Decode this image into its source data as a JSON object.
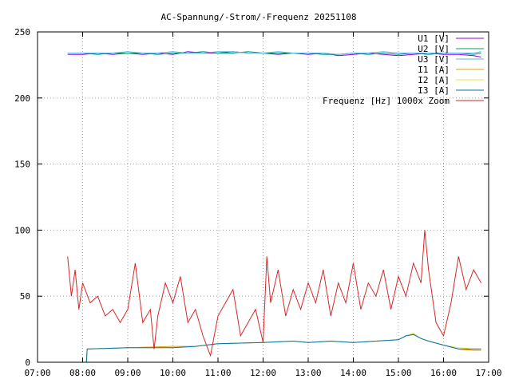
{
  "chart_data": {
    "type": "line",
    "title": "AC-Spannung/-Strom/-Frequenz 20251108",
    "xlabel": "",
    "ylabel": "",
    "x_ticks": [
      "07:00",
      "08:00",
      "09:00",
      "10:00",
      "11:00",
      "12:00",
      "13:00",
      "14:00",
      "15:00",
      "16:00",
      "17:00"
    ],
    "xlim": [
      "07:00",
      "17:00"
    ],
    "y_ticks": [
      0,
      50,
      100,
      150,
      200,
      250
    ],
    "ylim": [
      0,
      250
    ],
    "grid": true,
    "legend_position": "top-right",
    "series": [
      {
        "name": "U1 [V]",
        "color": "#9400d3",
        "x": [
          "07:40",
          "08:00",
          "08:20",
          "08:40",
          "09:00",
          "09:20",
          "09:40",
          "10:00",
          "10:20",
          "10:40",
          "11:00",
          "11:20",
          "11:40",
          "12:00",
          "12:20",
          "12:40",
          "13:00",
          "13:20",
          "13:40",
          "14:00",
          "14:20",
          "14:40",
          "15:00",
          "15:20",
          "15:40",
          "16:00",
          "16:20",
          "16:40",
          "16:50"
        ],
        "values": [
          233,
          233,
          234,
          233,
          234,
          233,
          234,
          233,
          235,
          234,
          234,
          235,
          234,
          234,
          233,
          234,
          233,
          234,
          232,
          233,
          234,
          233,
          232,
          233,
          234,
          233,
          233,
          232,
          231
        ]
      },
      {
        "name": "U2 [V]",
        "color": "#009e73",
        "x": [
          "07:40",
          "08:00",
          "08:20",
          "08:40",
          "09:00",
          "09:20",
          "09:40",
          "10:00",
          "10:20",
          "10:40",
          "11:00",
          "11:20",
          "11:40",
          "12:00",
          "12:20",
          "12:40",
          "13:00",
          "13:20",
          "13:40",
          "14:00",
          "14:20",
          "14:40",
          "15:00",
          "15:20",
          "15:40",
          "16:00",
          "16:20",
          "16:40",
          "16:50"
        ],
        "values": [
          234,
          234,
          233,
          234,
          234,
          234,
          233,
          234,
          234,
          235,
          234,
          234,
          235,
          234,
          234,
          234,
          234,
          233,
          233,
          234,
          233,
          234,
          233,
          234,
          233,
          234,
          234,
          233,
          234
        ]
      },
      {
        "name": "U3 [V]",
        "color": "#56b4e9",
        "x": [
          "07:40",
          "08:00",
          "08:20",
          "08:40",
          "09:00",
          "09:20",
          "09:40",
          "10:00",
          "10:20",
          "10:40",
          "11:00",
          "11:20",
          "11:40",
          "12:00",
          "12:20",
          "12:40",
          "13:00",
          "13:20",
          "13:40",
          "14:00",
          "14:20",
          "14:40",
          "15:00",
          "15:20",
          "15:40",
          "16:00",
          "16:20",
          "16:40",
          "16:50"
        ],
        "values": [
          234,
          234,
          234,
          234,
          235,
          234,
          234,
          235,
          234,
          234,
          235,
          235,
          234,
          234,
          235,
          234,
          234,
          234,
          233,
          234,
          234,
          235,
          234,
          234,
          234,
          234,
          234,
          234,
          235
        ]
      },
      {
        "name": "I1 [A]",
        "color": "#e69f00",
        "x": [
          "07:40",
          "08:05",
          "08:06",
          "09:00",
          "10:00",
          "10:30",
          "11:00",
          "12:00",
          "12:40",
          "13:00",
          "13:30",
          "14:00",
          "14:30",
          "15:00",
          "15:10",
          "15:20",
          "15:30",
          "15:40",
          "16:00",
          "16:20",
          "16:40",
          "16:50"
        ],
        "values": [
          0,
          0,
          10,
          11,
          12,
          12,
          14,
          15,
          16,
          15,
          16,
          15,
          16,
          17,
          20,
          21,
          18,
          16,
          13,
          10,
          9,
          9
        ]
      },
      {
        "name": "I2 [A]",
        "color": "#f0e442",
        "x": [
          "07:40",
          "08:05",
          "08:06",
          "09:00",
          "10:00",
          "10:30",
          "11:00",
          "12:00",
          "12:40",
          "13:00",
          "13:30",
          "14:00",
          "14:30",
          "15:00",
          "15:10",
          "15:20",
          "15:30",
          "15:40",
          "16:00",
          "16:20",
          "16:40",
          "16:50"
        ],
        "values": [
          0,
          0,
          10,
          11,
          11,
          12,
          14,
          15,
          16,
          15,
          16,
          15,
          16,
          17,
          20,
          22,
          18,
          16,
          13,
          11,
          10,
          10
        ]
      },
      {
        "name": "I3 [A]",
        "color": "#0072b2",
        "x": [
          "07:40",
          "08:05",
          "08:06",
          "09:00",
          "10:00",
          "10:30",
          "11:00",
          "12:00",
          "12:40",
          "13:00",
          "13:30",
          "14:00",
          "14:30",
          "15:00",
          "15:10",
          "15:20",
          "15:30",
          "15:40",
          "16:00",
          "16:20",
          "16:40",
          "16:50"
        ],
        "values": [
          0,
          0,
          10,
          11,
          11,
          12,
          14,
          15,
          16,
          15,
          16,
          15,
          16,
          17,
          20,
          21,
          18,
          16,
          13,
          10,
          10,
          10
        ]
      },
      {
        "name": "Frequenz [Hz] 1000x Zoom",
        "color": "#d62728",
        "x": [
          "07:40",
          "07:45",
          "07:50",
          "07:55",
          "08:00",
          "08:10",
          "08:20",
          "08:30",
          "08:40",
          "08:50",
          "09:00",
          "09:10",
          "09:20",
          "09:30",
          "09:35",
          "09:40",
          "09:50",
          "10:00",
          "10:10",
          "10:20",
          "10:30",
          "10:40",
          "10:50",
          "11:00",
          "11:10",
          "11:20",
          "11:30",
          "11:40",
          "11:50",
          "12:00",
          "12:05",
          "12:10",
          "12:20",
          "12:30",
          "12:40",
          "12:50",
          "13:00",
          "13:10",
          "13:20",
          "13:30",
          "13:40",
          "13:50",
          "14:00",
          "14:10",
          "14:20",
          "14:30",
          "14:40",
          "14:50",
          "15:00",
          "15:10",
          "15:20",
          "15:30",
          "15:35",
          "15:40",
          "15:50",
          "16:00",
          "16:10",
          "16:20",
          "16:30",
          "16:40",
          "16:45",
          "16:50"
        ],
        "values": [
          80,
          50,
          70,
          40,
          60,
          45,
          50,
          35,
          40,
          30,
          40,
          75,
          30,
          40,
          10,
          35,
          60,
          45,
          65,
          30,
          40,
          20,
          5,
          35,
          45,
          55,
          20,
          30,
          40,
          15,
          80,
          45,
          70,
          35,
          55,
          40,
          60,
          45,
          70,
          35,
          60,
          45,
          75,
          40,
          60,
          50,
          70,
          40,
          65,
          50,
          75,
          60,
          100,
          70,
          30,
          20,
          45,
          80,
          55,
          70,
          65,
          60
        ]
      }
    ]
  }
}
